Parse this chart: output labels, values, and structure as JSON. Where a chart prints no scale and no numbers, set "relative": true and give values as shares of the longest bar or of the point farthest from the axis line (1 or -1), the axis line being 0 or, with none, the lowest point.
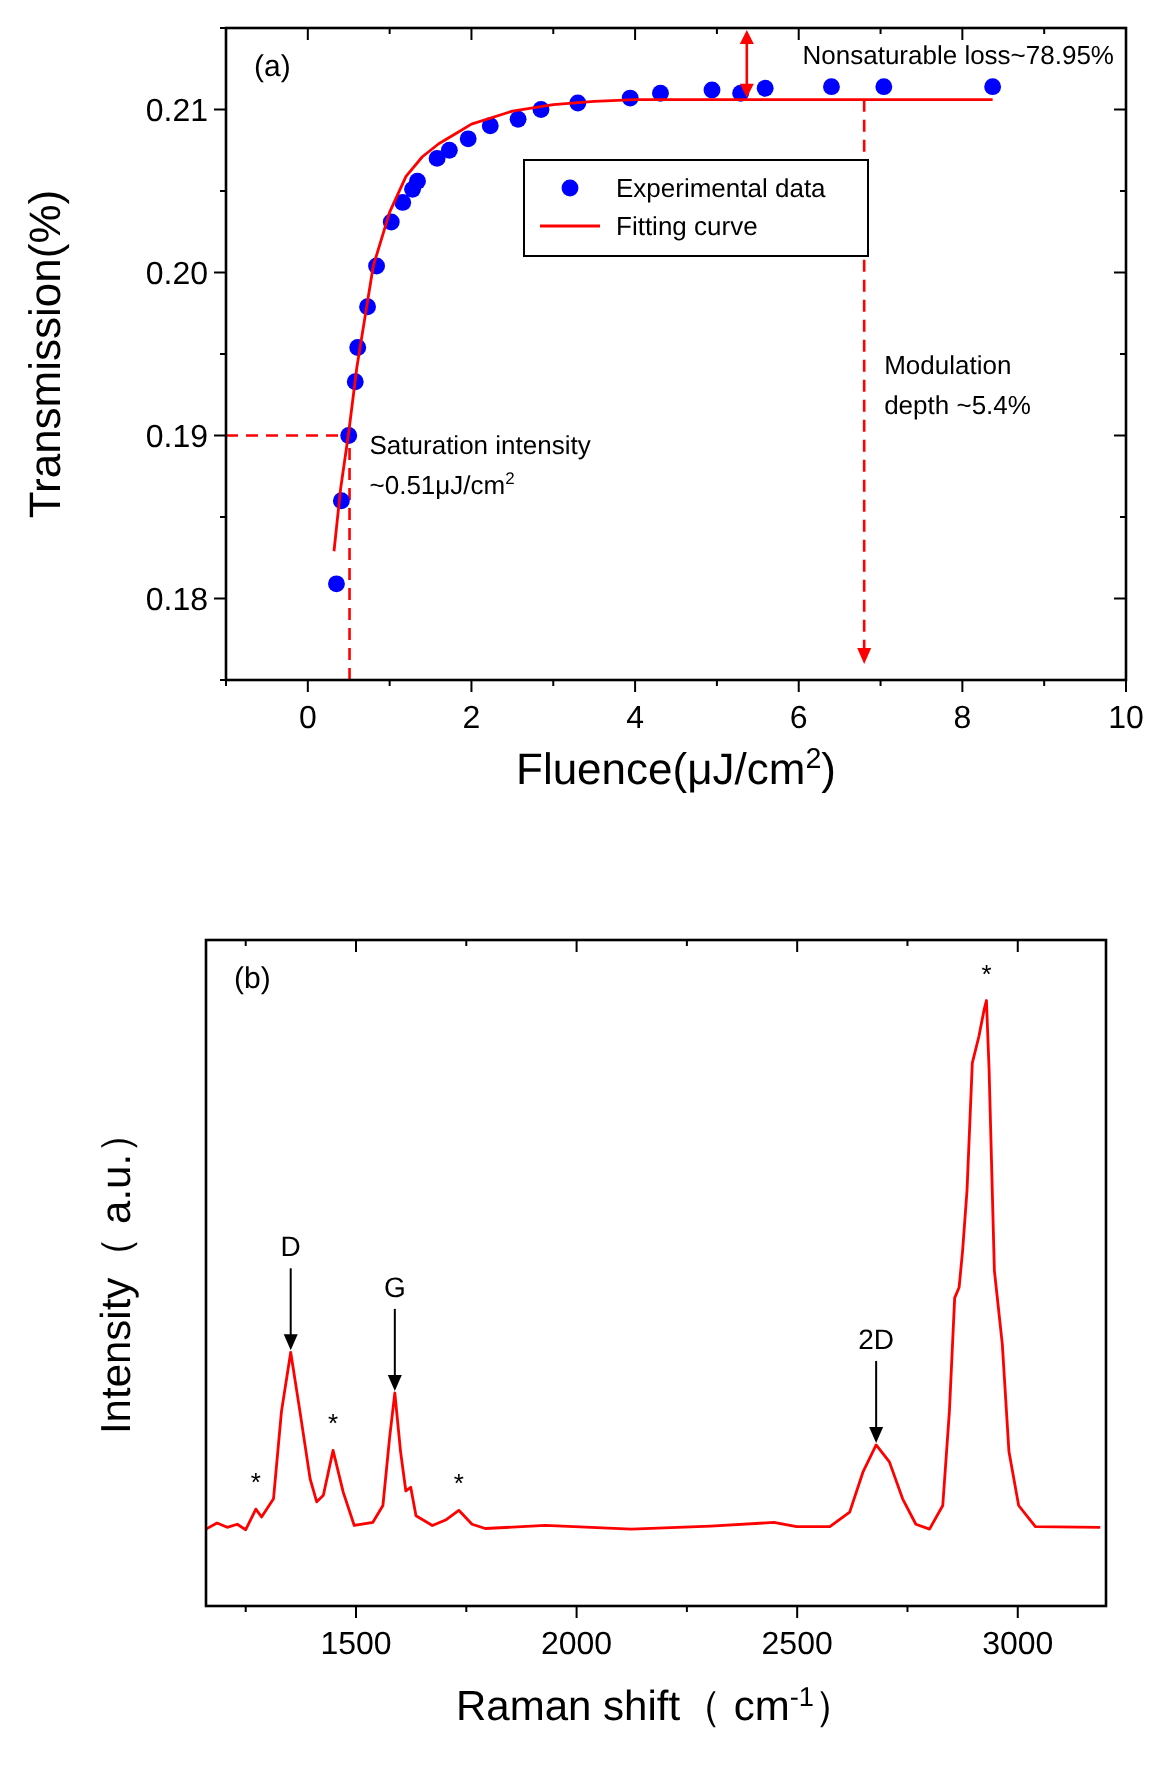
{
  "chart_data": [
    {
      "type": "scatter",
      "xlabel": "Fluence(μJ/cm$^{2}$)",
      "ylabel": "Transmission(%)",
      "xlim": [
        -1,
        10
      ],
      "ylim": [
        0.175,
        0.215
      ],
      "xticks": [
        {
          "value": -1,
          "label": null
        },
        0,
        {
          "value": 1,
          "label": null
        },
        2,
        {
          "value": 3,
          "label": null
        },
        4,
        {
          "value": 5,
          "label": null
        },
        6,
        {
          "value": 7,
          "label": null
        },
        8,
        {
          "value": 9,
          "label": null
        },
        10
      ],
      "yticks": [
        {
          "value": 0.175,
          "label": null
        },
        0.18,
        {
          "value": 0.185,
          "label": null
        },
        0.19,
        {
          "value": 0.195,
          "label": null
        },
        {
          "value": 0.2,
          "label": "0.20"
        },
        {
          "value": 0.205,
          "label": null
        },
        0.21,
        {
          "value": 0.215,
          "label": null
        }
      ],
      "legend": "top",
      "grid": false,
      "series": [
        {
          "name": "Experimental data",
          "color": "#0000ff",
          "marker": "circle",
          "x": [
            0.35,
            0.41,
            0.5,
            0.58,
            0.61,
            0.73,
            0.84,
            1.02,
            1.16,
            1.28,
            1.34,
            1.58,
            1.73,
            1.96,
            2.23,
            2.57,
            2.85,
            3.3,
            3.94,
            4.31,
            4.94,
            5.29,
            5.59,
            6.4,
            7.04,
            8.37
          ],
          "values": [
            0.1809,
            0.186,
            0.19,
            0.1933,
            0.1954,
            0.1979,
            0.2004,
            0.2031,
            0.2043,
            0.2051,
            0.2056,
            0.207,
            0.2075,
            0.2082,
            0.209,
            0.2094,
            0.21,
            0.2104,
            0.2107,
            0.211,
            0.2112,
            0.211,
            0.2113,
            0.2114,
            0.2114,
            0.2114
          ]
        },
        {
          "name": "Fitting curve",
          "type": "line",
          "color": "#ff0000",
          "x": [
            0.32,
            0.4,
            0.5,
            0.6,
            0.8,
            1.0,
            1.2,
            1.4,
            1.6,
            1.8,
            2.0,
            2.5,
            3.0,
            3.5,
            4.0,
            8.37
          ],
          "values": [
            0.1829,
            0.1867,
            0.1902,
            0.1942,
            0.2004,
            0.2037,
            0.2059,
            0.2071,
            0.2079,
            0.2085,
            0.2091,
            0.2099,
            0.2103,
            0.2105,
            0.2106,
            0.2106
          ]
        }
      ],
      "ref_lines": [
        {
          "axis": "y",
          "value": 0.19,
          "color": "#ff0000",
          "line_style": "dashed"
        },
        {
          "axis": "x",
          "value": 0.51,
          "color": "#ff0000",
          "line_style": "dashed",
          "label": "Saturation intensity ~0.51μJ/cm$^{2}$"
        },
        {
          "axis": "x",
          "value": 6.8,
          "color": "#ff0000",
          "line_style": "dashed",
          "label": "Modulation depth ~5.4%"
        }
      ],
      "annotations": [
        "(a)",
        "Nonsaturable loss~78.95%"
      ]
    },
    {
      "type": "line",
      "xlabel": "Raman shift（ cm$^{-1}$）",
      "ylabel": "Intensity（ a.u.）",
      "relative": true,
      "tick_labels": "x",
      "xlim": [
        1160,
        3200
      ],
      "xticks": [
        {
          "value": 1250,
          "label": null
        },
        1500,
        {
          "value": 1750,
          "label": null
        },
        2000,
        {
          "value": 2250,
          "label": null
        },
        2500,
        {
          "value": 2750,
          "label": null
        },
        3000
      ],
      "series": [
        {
          "color": "#ff0000",
          "x": [
            1160,
            1185,
            1208,
            1231,
            1250,
            1273,
            1286,
            1313,
            1331,
            1352,
            1373,
            1396,
            1411,
            1426,
            1448,
            1471,
            1496,
            1538,
            1561,
            1576,
            1588,
            1601,
            1613,
            1624,
            1636,
            1673,
            1703,
            1733,
            1763,
            1793,
            1929,
            2124,
            2304,
            2447,
            2499,
            2574,
            2619,
            2649,
            2679,
            2709,
            2739,
            2769,
            2800,
            2830,
            2845,
            2857,
            2867,
            2875,
            2885,
            2897,
            2912,
            2924,
            2929,
            2935,
            2947,
            2965,
            2980,
            3002,
            3040,
            3187
          ],
          "values": [
            0.127,
            0.137,
            0.13,
            0.135,
            0.126,
            0.16,
            0.147,
            0.177,
            0.321,
            0.419,
            0.321,
            0.21,
            0.172,
            0.183,
            0.257,
            0.188,
            0.133,
            0.138,
            0.166,
            0.277,
            0.352,
            0.255,
            0.19,
            0.196,
            0.149,
            0.133,
            0.142,
            0.158,
            0.135,
            0.128,
            0.133,
            0.127,
            0.132,
            0.138,
            0.131,
            0.131,
            0.155,
            0.221,
            0.266,
            0.238,
            0.177,
            0.135,
            0.127,
            0.166,
            0.321,
            0.509,
            0.526,
            0.587,
            0.687,
            0.897,
            0.941,
            0.986,
            1.0,
            0.886,
            0.554,
            0.432,
            0.255,
            0.166,
            0.131,
            0.13
          ]
        }
      ],
      "annotations": [
        "(b)",
        {
          "text": "D",
          "x": 1352,
          "y": 0.419
        },
        {
          "text": "G",
          "x": 1588,
          "y": 0.352
        },
        {
          "text": "2D",
          "x": 2679,
          "y": 0.266
        },
        {
          "text": "*",
          "x": 1273,
          "y": 0.16
        },
        {
          "text": "*",
          "x": 1448,
          "y": 0.257
        },
        {
          "text": "*",
          "x": 1733,
          "y": 0.158
        },
        {
          "text": "*",
          "x": 2929,
          "y": 1.0
        }
      ]
    }
  ]
}
